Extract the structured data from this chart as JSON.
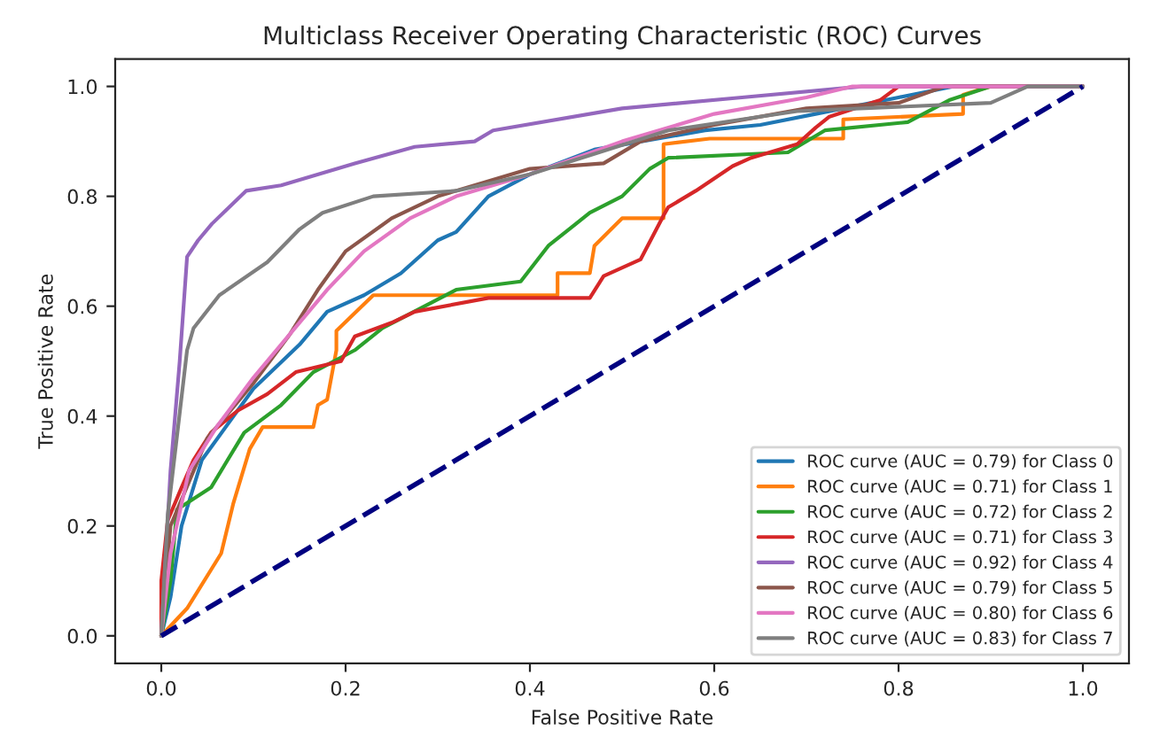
{
  "chart_data": {
    "type": "line",
    "title": "Multiclass Receiver Operating Characteristic (ROC) Curves",
    "xlabel": "False Positive Rate",
    "ylabel": "True Positive Rate",
    "xlim": [
      -0.05,
      1.05
    ],
    "ylim": [
      -0.05,
      1.05
    ],
    "xticks": [
      {
        "value": 0,
        "label": "0.0"
      },
      {
        "value": 0.2,
        "label": "0.2"
      },
      {
        "value": 0.4,
        "label": "0.4"
      },
      {
        "value": 0.6,
        "label": "0.6"
      },
      {
        "value": 0.8,
        "label": "0.8"
      },
      {
        "value": 1,
        "label": "1.0"
      }
    ],
    "yticks": [
      {
        "value": 0,
        "label": "0.0"
      },
      {
        "value": 0.2,
        "label": "0.2"
      },
      {
        "value": 0.4,
        "label": "0.4"
      },
      {
        "value": 0.6,
        "label": "0.6"
      },
      {
        "value": 0.8,
        "label": "0.8"
      },
      {
        "value": 1,
        "label": "1.0"
      }
    ],
    "grid": false,
    "legend": "bottom right",
    "marker": "none",
    "series": [
      {
        "name": "ROC curve (AUC = 0.79) for Class 0",
        "color": "#1f77b4",
        "x": [
          0,
          0.01,
          0.022,
          0.044,
          0.1,
          0.15,
          0.18,
          0.22,
          0.26,
          0.3,
          0.32,
          0.355,
          0.4,
          0.47,
          0.59,
          0.65,
          0.71,
          0.8,
          0.86,
          1
        ],
        "values": [
          0,
          0.07,
          0.2,
          0.32,
          0.45,
          0.53,
          0.59,
          0.62,
          0.66,
          0.72,
          0.735,
          0.8,
          0.84,
          0.885,
          0.92,
          0.93,
          0.95,
          0.98,
          1,
          1
        ]
      },
      {
        "name": "ROC curve (AUC = 0.71) for Class 1",
        "color": "#ff7f0e",
        "x": [
          0,
          0.028,
          0.065,
          0.078,
          0.096,
          0.11,
          0.165,
          0.17,
          0.18,
          0.19,
          0.19,
          0.23,
          0.34,
          0.43,
          0.43,
          0.465,
          0.47,
          0.5,
          0.545,
          0.545,
          0.595,
          0.74,
          0.74,
          0.87,
          0.87,
          0.9,
          1
        ],
        "values": [
          0,
          0.05,
          0.15,
          0.24,
          0.34,
          0.38,
          0.38,
          0.42,
          0.43,
          0.52,
          0.555,
          0.62,
          0.62,
          0.62,
          0.66,
          0.66,
          0.71,
          0.76,
          0.76,
          0.895,
          0.905,
          0.905,
          0.94,
          0.95,
          0.985,
          1,
          1
        ]
      },
      {
        "name": "ROC curve (AUC = 0.72) for Class 2",
        "color": "#2ca02c",
        "x": [
          0,
          0.01,
          0.017,
          0.054,
          0.09,
          0.13,
          0.165,
          0.21,
          0.24,
          0.32,
          0.39,
          0.42,
          0.465,
          0.5,
          0.53,
          0.55,
          0.68,
          0.72,
          0.81,
          0.855,
          0.9,
          1
        ],
        "values": [
          0,
          0.1,
          0.23,
          0.27,
          0.37,
          0.42,
          0.48,
          0.52,
          0.56,
          0.63,
          0.645,
          0.71,
          0.77,
          0.8,
          0.85,
          0.87,
          0.88,
          0.92,
          0.935,
          0.975,
          1,
          1
        ]
      },
      {
        "name": "ROC curve (AUC = 0.71) for Class 3",
        "color": "#d62728",
        "x": [
          0,
          0,
          0.007,
          0.022,
          0.035,
          0.054,
          0.083,
          0.115,
          0.146,
          0.195,
          0.21,
          0.25,
          0.275,
          0.355,
          0.465,
          0.48,
          0.52,
          0.545,
          0.55,
          0.58,
          0.62,
          0.64,
          0.69,
          0.71,
          0.725,
          0.78,
          0.8,
          1
        ],
        "values": [
          0,
          0.1,
          0.21,
          0.27,
          0.32,
          0.37,
          0.41,
          0.44,
          0.48,
          0.5,
          0.545,
          0.57,
          0.59,
          0.615,
          0.615,
          0.655,
          0.685,
          0.765,
          0.78,
          0.81,
          0.855,
          0.87,
          0.895,
          0.925,
          0.945,
          0.975,
          1,
          1
        ]
      },
      {
        "name": "ROC curve (AUC = 0.92) for Class 4",
        "color": "#9467bd",
        "x": [
          0,
          0.01,
          0.02,
          0.028,
          0.04,
          0.055,
          0.092,
          0.13,
          0.21,
          0.275,
          0.34,
          0.36,
          0.5,
          0.63,
          0.76,
          1
        ],
        "values": [
          0,
          0.3,
          0.5,
          0.69,
          0.72,
          0.75,
          0.81,
          0.82,
          0.86,
          0.89,
          0.9,
          0.92,
          0.96,
          0.98,
          1,
          1
        ]
      },
      {
        "name": "ROC curve (AUC = 0.79) for Class 5",
        "color": "#8c564b",
        "x": [
          0,
          0.01,
          0.05,
          0.1,
          0.14,
          0.17,
          0.2,
          0.25,
          0.3,
          0.4,
          0.48,
          0.52,
          0.6,
          0.7,
          0.8,
          0.85,
          1
        ],
        "values": [
          0,
          0.2,
          0.36,
          0.46,
          0.55,
          0.63,
          0.7,
          0.76,
          0.8,
          0.85,
          0.86,
          0.9,
          0.93,
          0.96,
          0.97,
          1,
          1
        ]
      },
      {
        "name": "ROC curve (AUC = 0.80) for Class 6",
        "color": "#e377c2",
        "x": [
          0,
          0.01,
          0.03,
          0.06,
          0.1,
          0.14,
          0.18,
          0.22,
          0.27,
          0.32,
          0.4,
          0.5,
          0.6,
          0.7,
          0.75,
          1
        ],
        "values": [
          0,
          0.15,
          0.3,
          0.38,
          0.47,
          0.55,
          0.63,
          0.7,
          0.76,
          0.8,
          0.84,
          0.9,
          0.95,
          0.98,
          1,
          1
        ]
      },
      {
        "name": "ROC curve (AUC = 0.83) for Class 7",
        "color": "#7f7f7f",
        "x": [
          0,
          0.007,
          0.028,
          0.035,
          0.063,
          0.115,
          0.15,
          0.175,
          0.23,
          0.32,
          0.4,
          0.55,
          0.69,
          0.9,
          0.94,
          1
        ],
        "values": [
          0,
          0.22,
          0.52,
          0.56,
          0.62,
          0.68,
          0.74,
          0.77,
          0.8,
          0.81,
          0.84,
          0.92,
          0.955,
          0.97,
          1,
          1
        ]
      },
      {
        "color": "#000080",
        "line_style": "dashed",
        "x": [
          0,
          1
        ],
        "values": [
          0,
          1
        ]
      }
    ]
  }
}
